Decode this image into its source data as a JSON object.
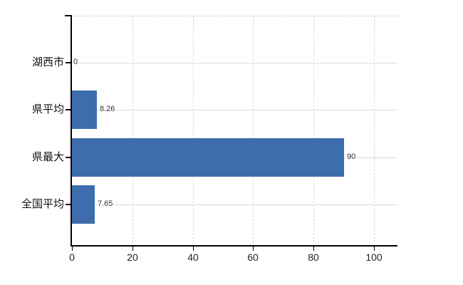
{
  "chart_data": {
    "type": "bar",
    "orientation": "horizontal",
    "title": "",
    "xlabel": "",
    "ylabel": "",
    "categories": [
      "湖西市",
      "県平均",
      "県最大",
      "全国平均"
    ],
    "values": [
      0,
      8.26,
      90,
      7.65
    ],
    "value_labels": [
      "0",
      "8.26",
      "90",
      "7.65"
    ],
    "x_ticks": [
      0,
      20,
      40,
      60,
      80,
      100
    ],
    "x_tick_labels": [
      "0",
      "20",
      "40",
      "60",
      "80",
      "100"
    ],
    "xlim": [
      0,
      108
    ],
    "grid": "on",
    "legend": "none",
    "bar_color": "#3e6dad",
    "axis_color": "#000000",
    "h_gridline_color": "#d8ded8",
    "v_gridline_color": "#d9d4d9",
    "plot_top_border_color": "#d6ced6",
    "category_label_color": "#111111",
    "tick_label_color": "#222222",
    "value_label_color": "#333333",
    "background_color": "#ffffff"
  }
}
